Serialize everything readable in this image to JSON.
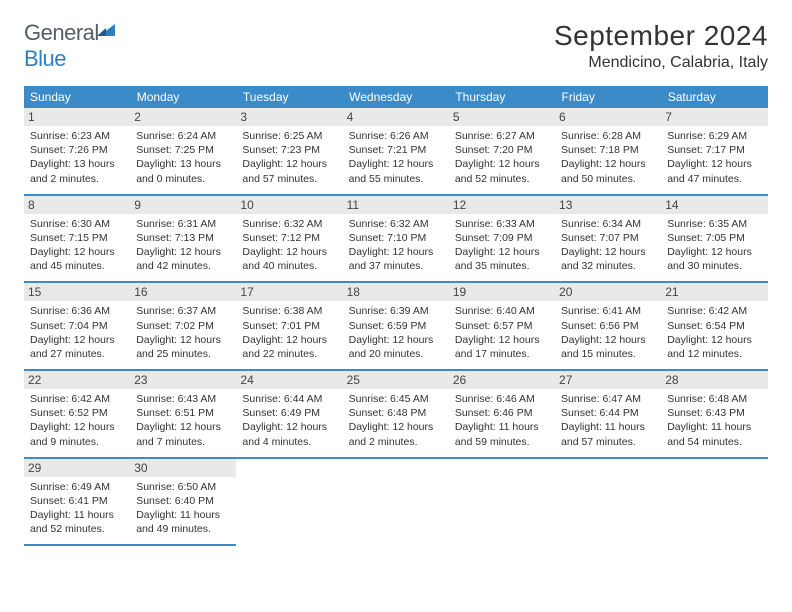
{
  "logo": {
    "word1": "General",
    "word2": "Blue"
  },
  "title": "September 2024",
  "location": "Mendicino, Calabria, Italy",
  "colors": {
    "header_bg": "#3b8bc9",
    "header_text": "#ffffff",
    "daynum_bg": "#e9e9e9",
    "border": "#3b8bc9",
    "logo_gray": "#555d66",
    "logo_blue": "#2f7ec2",
    "text": "#333333",
    "background": "#ffffff"
  },
  "typography": {
    "title_fontsize": 28,
    "location_fontsize": 16,
    "header_fontsize": 12,
    "daynum_fontsize": 12,
    "info_fontsize": 10.5
  },
  "day_headers": [
    "Sunday",
    "Monday",
    "Tuesday",
    "Wednesday",
    "Thursday",
    "Friday",
    "Saturday"
  ],
  "weeks": [
    [
      {
        "num": "1",
        "sunrise": "Sunrise: 6:23 AM",
        "sunset": "Sunset: 7:26 PM",
        "daylight": "Daylight: 13 hours and 2 minutes."
      },
      {
        "num": "2",
        "sunrise": "Sunrise: 6:24 AM",
        "sunset": "Sunset: 7:25 PM",
        "daylight": "Daylight: 13 hours and 0 minutes."
      },
      {
        "num": "3",
        "sunrise": "Sunrise: 6:25 AM",
        "sunset": "Sunset: 7:23 PM",
        "daylight": "Daylight: 12 hours and 57 minutes."
      },
      {
        "num": "4",
        "sunrise": "Sunrise: 6:26 AM",
        "sunset": "Sunset: 7:21 PM",
        "daylight": "Daylight: 12 hours and 55 minutes."
      },
      {
        "num": "5",
        "sunrise": "Sunrise: 6:27 AM",
        "sunset": "Sunset: 7:20 PM",
        "daylight": "Daylight: 12 hours and 52 minutes."
      },
      {
        "num": "6",
        "sunrise": "Sunrise: 6:28 AM",
        "sunset": "Sunset: 7:18 PM",
        "daylight": "Daylight: 12 hours and 50 minutes."
      },
      {
        "num": "7",
        "sunrise": "Sunrise: 6:29 AM",
        "sunset": "Sunset: 7:17 PM",
        "daylight": "Daylight: 12 hours and 47 minutes."
      }
    ],
    [
      {
        "num": "8",
        "sunrise": "Sunrise: 6:30 AM",
        "sunset": "Sunset: 7:15 PM",
        "daylight": "Daylight: 12 hours and 45 minutes."
      },
      {
        "num": "9",
        "sunrise": "Sunrise: 6:31 AM",
        "sunset": "Sunset: 7:13 PM",
        "daylight": "Daylight: 12 hours and 42 minutes."
      },
      {
        "num": "10",
        "sunrise": "Sunrise: 6:32 AM",
        "sunset": "Sunset: 7:12 PM",
        "daylight": "Daylight: 12 hours and 40 minutes."
      },
      {
        "num": "11",
        "sunrise": "Sunrise: 6:32 AM",
        "sunset": "Sunset: 7:10 PM",
        "daylight": "Daylight: 12 hours and 37 minutes."
      },
      {
        "num": "12",
        "sunrise": "Sunrise: 6:33 AM",
        "sunset": "Sunset: 7:09 PM",
        "daylight": "Daylight: 12 hours and 35 minutes."
      },
      {
        "num": "13",
        "sunrise": "Sunrise: 6:34 AM",
        "sunset": "Sunset: 7:07 PM",
        "daylight": "Daylight: 12 hours and 32 minutes."
      },
      {
        "num": "14",
        "sunrise": "Sunrise: 6:35 AM",
        "sunset": "Sunset: 7:05 PM",
        "daylight": "Daylight: 12 hours and 30 minutes."
      }
    ],
    [
      {
        "num": "15",
        "sunrise": "Sunrise: 6:36 AM",
        "sunset": "Sunset: 7:04 PM",
        "daylight": "Daylight: 12 hours and 27 minutes."
      },
      {
        "num": "16",
        "sunrise": "Sunrise: 6:37 AM",
        "sunset": "Sunset: 7:02 PM",
        "daylight": "Daylight: 12 hours and 25 minutes."
      },
      {
        "num": "17",
        "sunrise": "Sunrise: 6:38 AM",
        "sunset": "Sunset: 7:01 PM",
        "daylight": "Daylight: 12 hours and 22 minutes."
      },
      {
        "num": "18",
        "sunrise": "Sunrise: 6:39 AM",
        "sunset": "Sunset: 6:59 PM",
        "daylight": "Daylight: 12 hours and 20 minutes."
      },
      {
        "num": "19",
        "sunrise": "Sunrise: 6:40 AM",
        "sunset": "Sunset: 6:57 PM",
        "daylight": "Daylight: 12 hours and 17 minutes."
      },
      {
        "num": "20",
        "sunrise": "Sunrise: 6:41 AM",
        "sunset": "Sunset: 6:56 PM",
        "daylight": "Daylight: 12 hours and 15 minutes."
      },
      {
        "num": "21",
        "sunrise": "Sunrise: 6:42 AM",
        "sunset": "Sunset: 6:54 PM",
        "daylight": "Daylight: 12 hours and 12 minutes."
      }
    ],
    [
      {
        "num": "22",
        "sunrise": "Sunrise: 6:42 AM",
        "sunset": "Sunset: 6:52 PM",
        "daylight": "Daylight: 12 hours and 9 minutes."
      },
      {
        "num": "23",
        "sunrise": "Sunrise: 6:43 AM",
        "sunset": "Sunset: 6:51 PM",
        "daylight": "Daylight: 12 hours and 7 minutes."
      },
      {
        "num": "24",
        "sunrise": "Sunrise: 6:44 AM",
        "sunset": "Sunset: 6:49 PM",
        "daylight": "Daylight: 12 hours and 4 minutes."
      },
      {
        "num": "25",
        "sunrise": "Sunrise: 6:45 AM",
        "sunset": "Sunset: 6:48 PM",
        "daylight": "Daylight: 12 hours and 2 minutes."
      },
      {
        "num": "26",
        "sunrise": "Sunrise: 6:46 AM",
        "sunset": "Sunset: 6:46 PM",
        "daylight": "Daylight: 11 hours and 59 minutes."
      },
      {
        "num": "27",
        "sunrise": "Sunrise: 6:47 AM",
        "sunset": "Sunset: 6:44 PM",
        "daylight": "Daylight: 11 hours and 57 minutes."
      },
      {
        "num": "28",
        "sunrise": "Sunrise: 6:48 AM",
        "sunset": "Sunset: 6:43 PM",
        "daylight": "Daylight: 11 hours and 54 minutes."
      }
    ],
    [
      {
        "num": "29",
        "sunrise": "Sunrise: 6:49 AM",
        "sunset": "Sunset: 6:41 PM",
        "daylight": "Daylight: 11 hours and 52 minutes."
      },
      {
        "num": "30",
        "sunrise": "Sunrise: 6:50 AM",
        "sunset": "Sunset: 6:40 PM",
        "daylight": "Daylight: 11 hours and 49 minutes."
      },
      {
        "empty": true
      },
      {
        "empty": true
      },
      {
        "empty": true
      },
      {
        "empty": true
      },
      {
        "empty": true
      }
    ]
  ]
}
